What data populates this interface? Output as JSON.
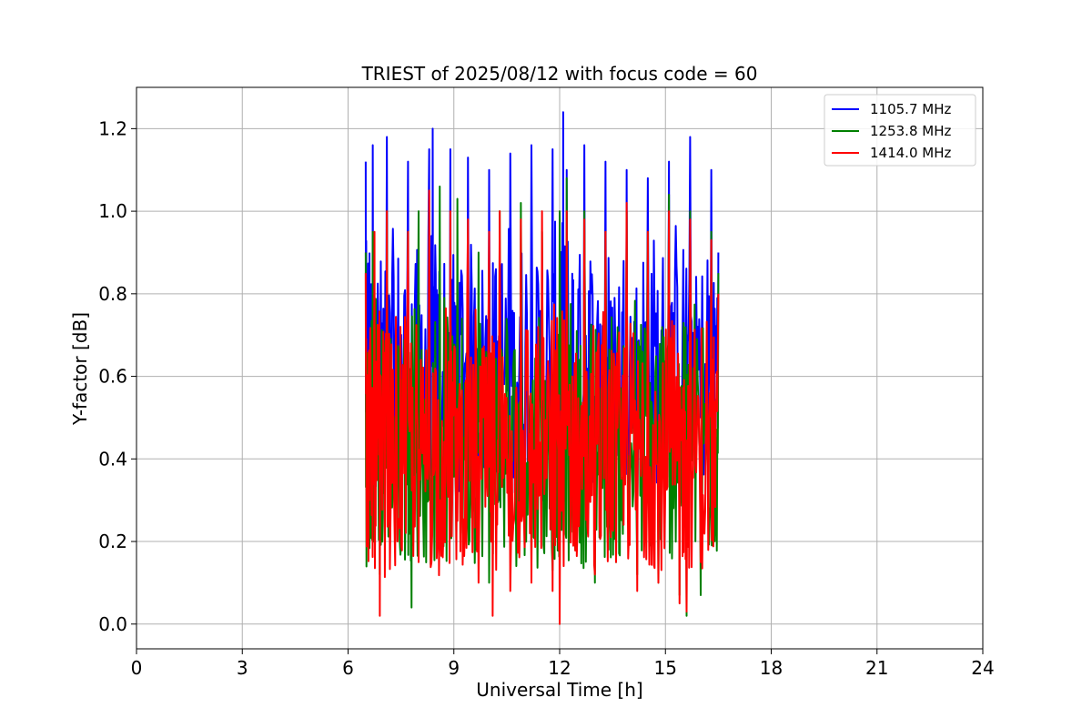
{
  "chart_data": {
    "type": "line",
    "title": "TRIEST of 2025/08/12 with focus code = 60",
    "xlabel": "Universal Time [h]",
    "ylabel": "Y-factor [dB]",
    "xlim": [
      0,
      24
    ],
    "ylim": [
      -0.06,
      1.3
    ],
    "xticks": [
      0,
      3,
      6,
      9,
      12,
      15,
      18,
      21,
      24
    ],
    "yticks": [
      0.0,
      0.2,
      0.4,
      0.6,
      0.8,
      1.0,
      1.2
    ],
    "ytick_labels": [
      "0.0",
      "0.2",
      "0.4",
      "0.6",
      "0.8",
      "1.0",
      "1.2"
    ],
    "grid": true,
    "legend_position": "top-right",
    "x_range_of_data": [
      6.5,
      16.5
    ],
    "series": [
      {
        "name": "1105.7 MHz",
        "color": "#0000ff",
        "x": [
          6.5,
          6.6,
          6.7,
          6.9,
          7.1,
          7.4,
          7.7,
          8.0,
          8.3,
          8.4,
          8.6,
          8.9,
          9.1,
          9.4,
          9.7,
          10.0,
          10.3,
          10.6,
          10.9,
          11.2,
          11.5,
          11.8,
          12.0,
          12.1,
          12.2,
          12.4,
          12.7,
          13.0,
          13.3,
          13.6,
          13.9,
          14.2,
          14.5,
          14.8,
          15.1,
          15.4,
          15.7,
          16.0,
          16.3,
          16.5
        ],
        "values": [
          1.12,
          0.4,
          1.16,
          0.2,
          1.18,
          0.33,
          1.12,
          0.5,
          1.15,
          1.2,
          0.45,
          1.15,
          0.55,
          1.13,
          0.35,
          1.1,
          0.3,
          1.14,
          0.5,
          1.16,
          0.3,
          1.15,
          0.35,
          1.24,
          1.1,
          0.4,
          1.16,
          0.28,
          1.12,
          0.42,
          1.1,
          0.25,
          1.08,
          0.3,
          1.12,
          0.35,
          1.18,
          0.5,
          1.1,
          0.9
        ]
      },
      {
        "name": "1253.8 MHz",
        "color": "#008000",
        "x": [
          6.5,
          6.6,
          6.7,
          6.9,
          7.1,
          7.4,
          7.7,
          7.8,
          8.0,
          8.3,
          8.6,
          8.9,
          9.1,
          9.4,
          9.7,
          10.0,
          10.3,
          10.6,
          10.9,
          11.2,
          11.5,
          11.8,
          12.0,
          12.2,
          12.4,
          12.7,
          13.0,
          13.3,
          13.6,
          13.9,
          14.2,
          14.5,
          14.8,
          15.1,
          15.4,
          15.6,
          15.7,
          16.0,
          16.3,
          16.5
        ],
        "values": [
          0.9,
          0.35,
          0.95,
          0.12,
          1.0,
          0.2,
          0.95,
          0.04,
          1.0,
          0.3,
          1.06,
          0.4,
          1.03,
          0.25,
          0.9,
          0.1,
          1.0,
          0.2,
          1.02,
          0.15,
          0.95,
          0.13,
          1.0,
          1.08,
          0.25,
          1.0,
          0.1,
          0.95,
          0.15,
          1.0,
          0.12,
          0.95,
          0.1,
          1.04,
          0.07,
          0.02,
          1.0,
          0.07,
          0.95,
          0.85
        ]
      },
      {
        "name": "1414.0 MHz",
        "color": "#ff0000",
        "x": [
          6.5,
          6.6,
          6.75,
          6.9,
          7.1,
          7.4,
          7.7,
          8.0,
          8.3,
          8.6,
          8.9,
          9.1,
          9.4,
          9.7,
          10.0,
          10.1,
          10.3,
          10.6,
          10.9,
          11.2,
          11.5,
          11.8,
          12.0,
          12.2,
          12.4,
          12.7,
          13.0,
          13.3,
          13.6,
          13.9,
          14.2,
          14.5,
          14.8,
          15.1,
          15.4,
          15.6,
          15.7,
          16.0,
          16.3,
          16.5
        ],
        "values": [
          0.85,
          0.3,
          0.95,
          0.02,
          1.0,
          0.2,
          0.95,
          0.15,
          1.05,
          0.3,
          1.0,
          0.25,
          0.98,
          0.1,
          0.95,
          0.02,
          1.0,
          0.08,
          0.98,
          0.1,
          1.0,
          0.08,
          0.0,
          1.0,
          0.2,
          0.98,
          0.12,
          0.95,
          0.15,
          1.02,
          0.08,
          0.95,
          0.1,
          1.0,
          0.05,
          0.03,
          0.98,
          0.15,
          0.93,
          0.8
        ]
      }
    ]
  }
}
